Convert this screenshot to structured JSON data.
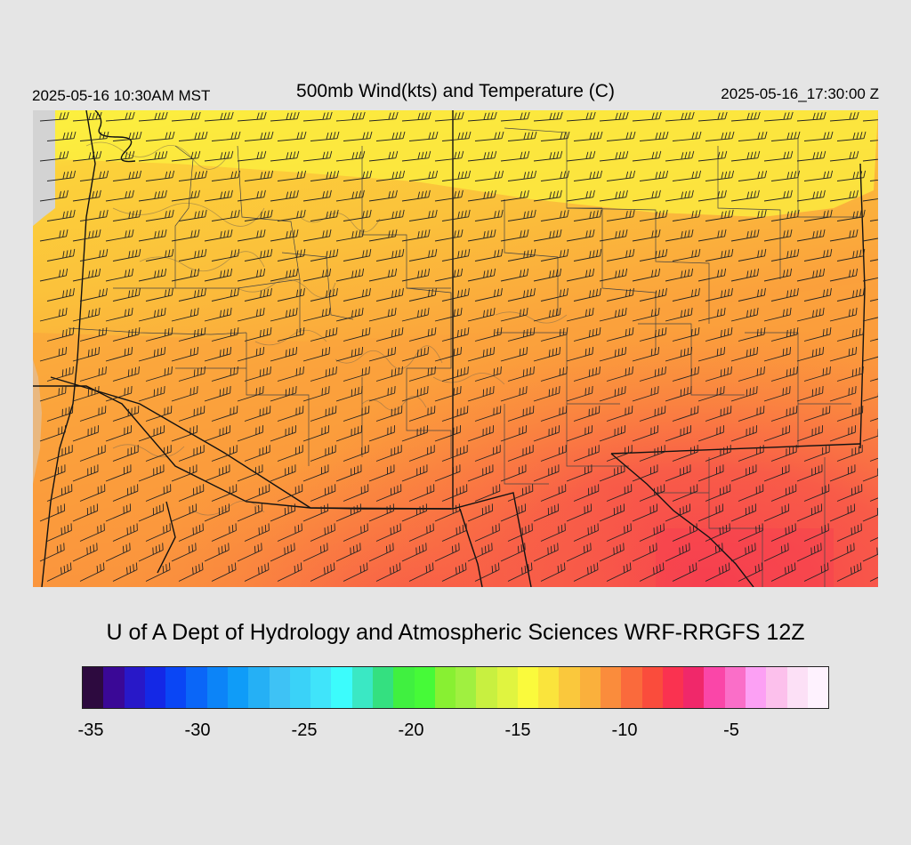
{
  "header": {
    "local_time": "2025-05-16 10:30AM MST",
    "title": "500mb Wind(kts) and Temperature (C)",
    "utc_time": "2025-05-16_17:30:00 Z"
  },
  "credit": "U of A Dept of Hydrology and Atmospheric Sciences WRF-RRGFS 12Z",
  "colorbar": {
    "colors": [
      "#2d0a3f",
      "#3a0896",
      "#2818c8",
      "#1428e6",
      "#0a46f5",
      "#0a66f8",
      "#0c84f8",
      "#0f9cf8",
      "#25b0f5",
      "#3ec2f5",
      "#3ad2f8",
      "#40e4fa",
      "#3cfcfc",
      "#3ae8c4",
      "#34e080",
      "#40f040",
      "#46fa38",
      "#88f032",
      "#a0f040",
      "#c8f040",
      "#e0f440",
      "#fafa3c",
      "#fae43c",
      "#fac83c",
      "#fab03c",
      "#fa8c3c",
      "#fa6a3c",
      "#fa4c3c",
      "#fa3250",
      "#f0286a",
      "#fa46a8",
      "#fa6ec8",
      "#fca0f4",
      "#fcc0ec",
      "#fce0f6",
      "#fef2fe"
    ],
    "ticks": [
      {
        "label": "-35",
        "value": -35
      },
      {
        "label": "-30",
        "value": -30
      },
      {
        "label": "-25",
        "value": -25
      },
      {
        "label": "-20",
        "value": -20
      },
      {
        "label": "-15",
        "value": -15
      },
      {
        "label": "-10",
        "value": -10
      },
      {
        "label": "-5",
        "value": -5
      }
    ],
    "min": -36,
    "max": -1
  },
  "map": {
    "field_colors": {
      "ocean": "#d3d3d3",
      "yellow_north": "#fcf040",
      "gold": "#fcd23a",
      "amber": "#fbc13b",
      "orange": "#fba23c",
      "dark_orange": "#fa7d40",
      "red": "#f8524a",
      "hot_red": "#f63f4f"
    },
    "line_colors": {
      "borders": "#111111",
      "counties": "#444444",
      "contours": "#7a6a50",
      "barbs": "#222222"
    }
  }
}
